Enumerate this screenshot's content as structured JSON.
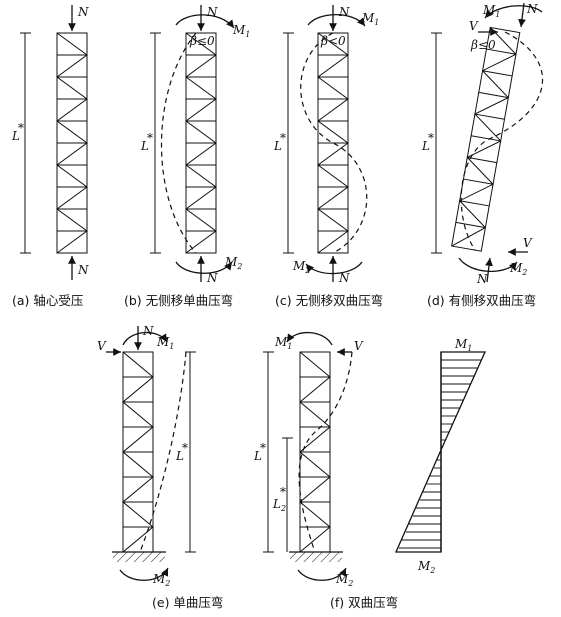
{
  "labels": {
    "N": "N",
    "M1": "M",
    "M1_sub": "1",
    "M2": "M",
    "M2_sub": "2",
    "V": "V",
    "Lstar": "L",
    "star": "*",
    "L2star": "L",
    "L2_sub": "2",
    "beta_le": "β≤0",
    "beta_lt": "β<0"
  },
  "captions": {
    "a": "(a) 轴心受压",
    "b": "(b) 无侧移单曲压弯",
    "c": "(c) 无侧移双曲压弯",
    "d": "(d) 有侧移双曲压弯",
    "e": "(e) 单曲压弯",
    "f": "(f) 双曲压弯"
  }
}
